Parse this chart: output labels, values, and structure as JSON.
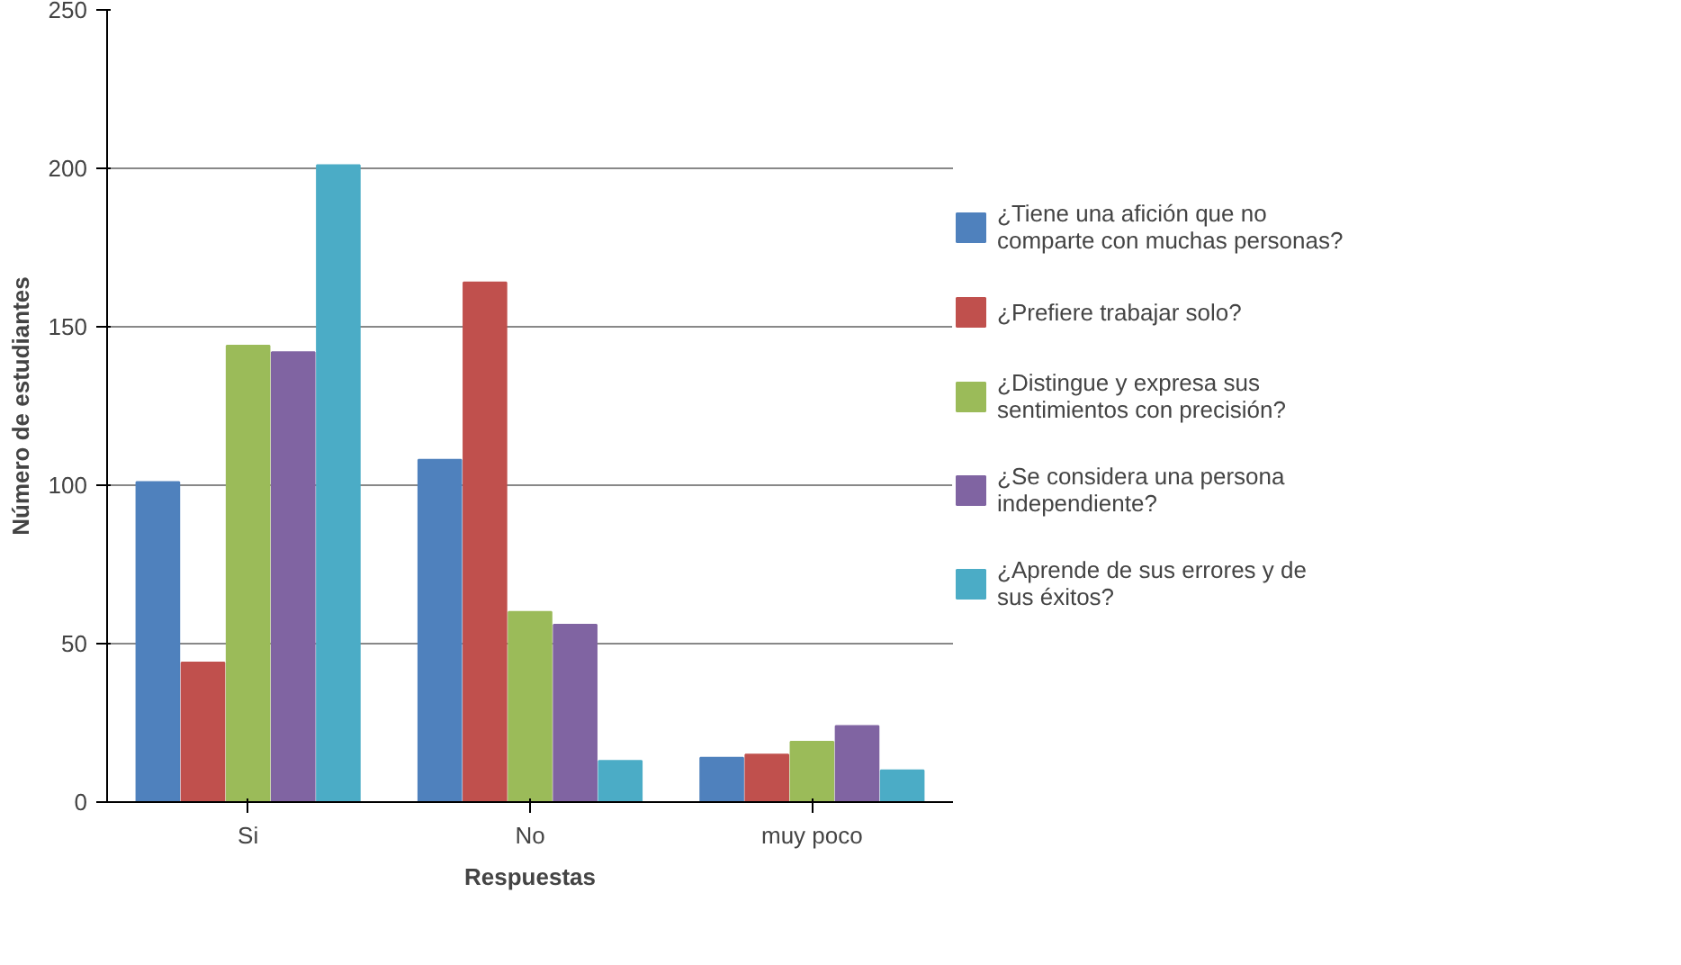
{
  "chart_data": {
    "type": "bar",
    "xlabel": "Respuestas",
    "ylabel": "Número de estudiantes",
    "categories": [
      "Si",
      "No",
      "muy poco"
    ],
    "series": [
      {
        "name": "¿Tiene una afición que no comparte con muchas personas?",
        "color": "#4f81bd",
        "values": [
          101,
          108,
          14
        ]
      },
      {
        "name": "¿Prefiere trabajar solo?",
        "color": "#c0504d",
        "values": [
          44,
          164,
          15
        ]
      },
      {
        "name": "¿Distingue y expresa sus sentimientos con precisión?",
        "color": "#9bbb59",
        "values": [
          144,
          60,
          19
        ]
      },
      {
        "name": "¿Se considera una persona independiente?",
        "color": "#8064a2",
        "values": [
          142,
          56,
          24
        ]
      },
      {
        "name": "¿Aprende de sus errores y de sus éxitos?",
        "color": "#4bacc6",
        "values": [
          201,
          13,
          10
        ]
      }
    ],
    "ylim": [
      0,
      250
    ],
    "yticks": [
      0,
      50,
      100,
      150,
      200,
      250
    ],
    "grid": "y",
    "legend": "right"
  }
}
